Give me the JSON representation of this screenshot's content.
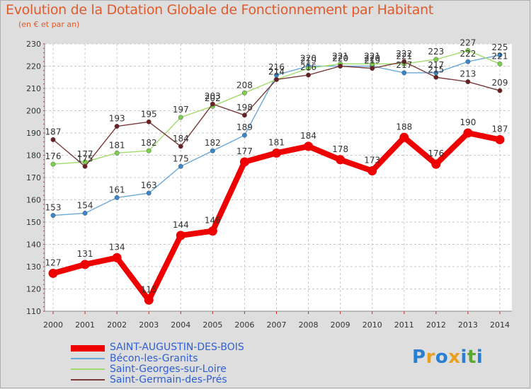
{
  "header": {
    "title": "Evolution de la Dotation Globale de Fonctionnement par Habitant",
    "subtitle": "(en € et par an)"
  },
  "logo": {
    "text": "Proxiti",
    "colors": [
      "#2a7fd0",
      "#e8a020",
      "#2a7fd0",
      "#e8a020",
      "#2a7fd0",
      "#5aa830",
      "#2a7fd0"
    ]
  },
  "chart_data": {
    "type": "line",
    "title": "Evolution de la Dotation Globale de Fonctionnement par Habitant",
    "subtitle": "(en € et par an)",
    "xlabel": "",
    "ylabel": "",
    "ylim": [
      110,
      230
    ],
    "yticks": [
      110,
      120,
      130,
      140,
      150,
      160,
      170,
      180,
      190,
      200,
      210,
      220,
      230
    ],
    "grid": true,
    "legend_position": "bottom-left",
    "x": [
      "2000",
      "2001",
      "2002",
      "2003",
      "2004",
      "2005",
      "2006",
      "2007",
      "2008",
      "2009",
      "2010",
      "2011",
      "2012",
      "2013",
      "2014"
    ],
    "series": [
      {
        "name": "SAINT-AUGUSTIN-DES-BOIS",
        "color": "#ee0000",
        "marker_color": "#ee0000",
        "emphasis": true,
        "values": [
          127,
          131,
          134,
          115,
          144,
          146,
          177,
          181,
          184,
          178,
          173,
          188,
          176,
          190,
          187
        ],
        "labels": [
          "127",
          "131",
          "134",
          "115",
          "144",
          "146",
          "177",
          "181",
          "184",
          "178",
          "173",
          "188",
          "176",
          "190",
          "187"
        ]
      },
      {
        "name": "Bécon-les-Granits",
        "color": "#6aa8d8",
        "marker_color": "#3a86c8",
        "values": [
          153,
          154,
          161,
          163,
          175,
          182,
          189,
          216,
          220,
          220,
          220,
          217,
          217,
          222,
          225
        ],
        "labels": [
          "153",
          "154",
          "161",
          "163",
          "175",
          "182",
          "189",
          "216",
          "220",
          "220",
          "220",
          "217",
          "217",
          "222",
          "225"
        ]
      },
      {
        "name": "Saint-Georges-sur-Loire",
        "color": "#a0dc6a",
        "marker_color": "#7cd04a",
        "values": [
          176,
          177,
          181,
          182,
          197,
          202,
          208,
          214,
          219,
          221,
          221,
          221,
          223,
          227,
          221
        ],
        "labels": [
          "176",
          "177",
          "181",
          "182",
          "197",
          "202",
          "208",
          "214",
          "219",
          "221",
          "221",
          "221",
          "223",
          "227",
          "221"
        ]
      },
      {
        "name": "Saint-Germain-des-Prés",
        "color": "#7a3a3a",
        "marker_color": "#6a2020",
        "values": [
          187,
          175,
          193,
          195,
          184,
          203,
          198,
          214,
          216,
          220,
          219,
          222,
          215,
          213,
          209
        ],
        "labels": [
          "187",
          "175",
          "193",
          "195",
          "184",
          "203",
          "198",
          "214",
          "216",
          "220",
          "219",
          "222",
          "215",
          "213",
          "209"
        ]
      }
    ]
  }
}
